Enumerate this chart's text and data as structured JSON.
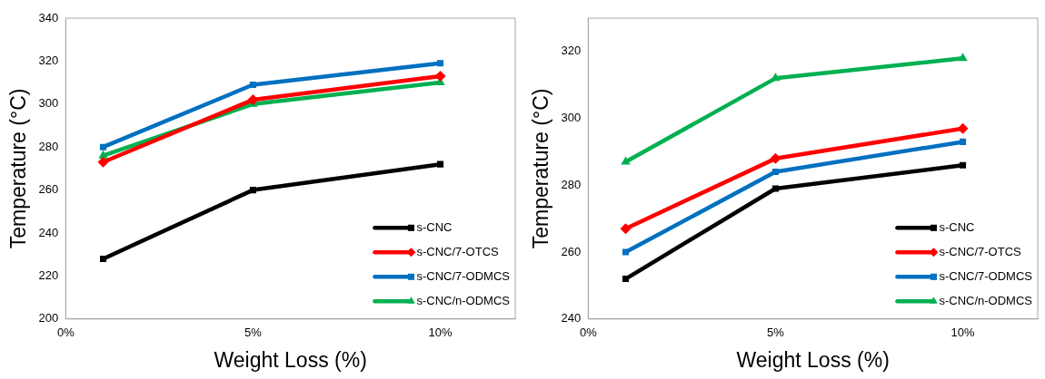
{
  "chart_data": [
    {
      "type": "line",
      "xlabel": "Weight Loss (%)",
      "ylabel": "Temperature (°C)",
      "x": [
        1,
        5,
        10
      ],
      "xlim": [
        0,
        12
      ],
      "xticks": [
        {
          "value": 0,
          "label": "0%"
        },
        {
          "value": 5,
          "label": "5%"
        },
        {
          "value": 10,
          "label": "10%"
        }
      ],
      "ylim": [
        200,
        340
      ],
      "yticks": [
        200,
        220,
        240,
        260,
        280,
        300,
        320,
        340
      ],
      "grid": false,
      "legend": "bottom right",
      "line_style": "solid",
      "series": [
        {
          "name": "s-CNC",
          "color": "#000000",
          "marker": "square",
          "values": [
            228,
            260,
            272
          ]
        },
        {
          "name": "s-CNC/7-OTCS",
          "color": "#ff0000",
          "marker": "diamond",
          "values": [
            273,
            302,
            313
          ]
        },
        {
          "name": "s-CNC/7-ODMCS",
          "color": "#0070c0",
          "marker": "square",
          "values": [
            280,
            309,
            319
          ]
        },
        {
          "name": "s-CNC/n-ODMCS",
          "color": "#00b050",
          "marker": "triangle",
          "values": [
            276,
            300,
            310
          ]
        }
      ]
    },
    {
      "type": "line",
      "xlabel": "Weight Loss (%)",
      "ylabel": "Temperature (°C)",
      "x": [
        1,
        5,
        10
      ],
      "xlim": [
        0,
        12
      ],
      "xticks": [
        {
          "value": 0,
          "label": "0%"
        },
        {
          "value": 5,
          "label": "5%"
        },
        {
          "value": 10,
          "label": "10%"
        }
      ],
      "ylim": [
        240,
        330
      ],
      "yticks": [
        240,
        260,
        280,
        300,
        320
      ],
      "grid": false,
      "legend": "bottom right",
      "line_style": "solid",
      "series": [
        {
          "name": "s-CNC",
          "color": "#000000",
          "marker": "square",
          "values": [
            252,
            279,
            286
          ]
        },
        {
          "name": "s-CNC/7-OTCS",
          "color": "#ff0000",
          "marker": "diamond",
          "values": [
            267,
            288,
            297
          ]
        },
        {
          "name": "s-CNC/7-ODMCS",
          "color": "#0070c0",
          "marker": "square",
          "values": [
            260,
            284,
            293
          ]
        },
        {
          "name": "s-CNC/n-ODMCS",
          "color": "#00b050",
          "marker": "triangle",
          "values": [
            287,
            312,
            318
          ]
        }
      ]
    }
  ]
}
